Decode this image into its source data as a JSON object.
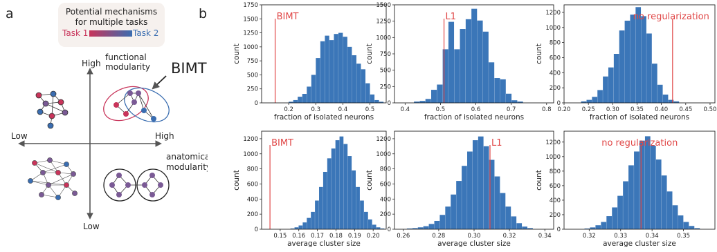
{
  "panel_a": {
    "letter": "a",
    "legend_line1": "Potential mechanisms",
    "legend_line2": "for multiple tasks",
    "task1": "Task 1",
    "task2": "Task 2",
    "axis_high_y": "High",
    "axis_low_y": "Low",
    "axis_low_x": "Low",
    "axis_high_x": "High",
    "functional_1": "functional",
    "functional_2": "modularity",
    "anatomical_1": "anatomical",
    "anatomical_2": "modularity",
    "bimt": "BIMT",
    "colors": {
      "task1": "#c8345a",
      "task2": "#3a6db0",
      "mixed": "#7a5a95",
      "legend_bg": "#f6f1ee"
    }
  },
  "panel_b": {
    "letter": "b"
  },
  "chart_data": [
    {
      "type": "bar",
      "xlabel": "fraction of isolated neurons",
      "ylabel": "count",
      "xlim": [
        0.1,
        0.56
      ],
      "ylim": [
        0,
        1750
      ],
      "xticks": [
        0.2,
        0.3,
        0.4,
        0.5
      ],
      "xtick_labels": [
        "0.2",
        "0.3",
        "0.4",
        "0.5"
      ],
      "yticks": [
        0,
        250,
        500,
        750,
        1000,
        1250,
        1500,
        1750
      ],
      "ytick_labels": [
        "0",
        "250",
        "500",
        "750",
        "1000",
        "1250",
        "1500",
        "1750"
      ],
      "bin_start": 0.2,
      "bin_width": 0.0167,
      "values": [
        20,
        50,
        110,
        160,
        290,
        500,
        800,
        1100,
        1200,
        1120,
        1230,
        1250,
        1180,
        1000,
        850,
        700,
        600,
        350,
        150,
        50,
        20
      ],
      "vline": 0.15,
      "annotation": "BIMT",
      "color": "#3b76b8"
    },
    {
      "type": "bar",
      "xlabel": "fraction of isolated neurons",
      "ylabel": "count",
      "xlim": [
        0.37,
        0.82
      ],
      "ylim": [
        0,
        1500
      ],
      "xticks": [
        0.4,
        0.5,
        0.6,
        0.7,
        0.8
      ],
      "xtick_labels": [
        "0.4",
        "0.5",
        "0.6",
        "0.7",
        "0.8"
      ],
      "yticks": [
        0,
        250,
        500,
        750,
        1000,
        1250,
        1500
      ],
      "ytick_labels": [
        "0",
        "250",
        "500",
        "750",
        "1000",
        "1250",
        "1500"
      ],
      "bin_start": 0.425,
      "bin_width": 0.01625,
      "values": [
        20,
        30,
        60,
        200,
        280,
        820,
        1240,
        820,
        1130,
        1280,
        1440,
        1260,
        1090,
        620,
        380,
        360,
        140,
        40,
        20
      ],
      "vline": 0.51,
      "annotation": "L1",
      "color": "#3b76b8"
    },
    {
      "type": "bar",
      "xlabel": "fraction of isolated neurons",
      "ylabel": "count",
      "xlim": [
        0.2,
        0.51
      ],
      "ylim": [
        0,
        1300
      ],
      "xticks": [
        0.2,
        0.25,
        0.3,
        0.35,
        0.4,
        0.45,
        0.5
      ],
      "xtick_labels": [
        "0.20",
        "0.25",
        "0.30",
        "0.35",
        "0.40",
        "0.45",
        "0.50"
      ],
      "yticks": [
        0,
        200,
        400,
        600,
        800,
        1000,
        1200
      ],
      "ytick_labels": [
        "0",
        "200",
        "400",
        "600",
        "800",
        "1000",
        "1200"
      ],
      "bin_start": 0.235,
      "bin_width": 0.0112,
      "values": [
        20,
        40,
        80,
        170,
        350,
        470,
        650,
        960,
        1090,
        1170,
        1270,
        1150,
        920,
        520,
        240,
        110,
        40,
        20
      ],
      "vline": 0.423,
      "annotation": "no regularization",
      "color": "#3b76b8"
    },
    {
      "type": "bar",
      "xlabel": "average cluster size",
      "ylabel": "count",
      "xlim": [
        0.14,
        0.207
      ],
      "ylim": [
        0,
        1300
      ],
      "xticks": [
        0.15,
        0.16,
        0.17,
        0.18,
        0.19,
        0.2
      ],
      "xtick_labels": [
        "0.15",
        "0.16",
        "0.17",
        "0.18",
        "0.19",
        "0.20"
      ],
      "yticks": [
        0,
        200,
        400,
        600,
        800,
        1000,
        1200
      ],
      "ytick_labels": [
        "0",
        "200",
        "400",
        "600",
        "800",
        "1000",
        "1200"
      ],
      "bin_start": 0.1555,
      "bin_width": 0.0022,
      "values": [
        10,
        25,
        50,
        90,
        150,
        230,
        380,
        560,
        760,
        940,
        1070,
        1180,
        1230,
        1130,
        970,
        780,
        560,
        380,
        230,
        130,
        60,
        25,
        10
      ],
      "vline": 0.1445,
      "annotation": "BIMT",
      "color": "#3b76b8"
    },
    {
      "type": "bar",
      "xlabel": "average cluster size",
      "ylabel": "count",
      "xlim": [
        0.255,
        0.345
      ],
      "ylim": [
        0,
        1300
      ],
      "xticks": [
        0.26,
        0.28,
        0.3,
        0.32,
        0.34
      ],
      "xtick_labels": [
        "0.26",
        "0.28",
        "0.30",
        "0.32",
        "0.34"
      ],
      "yticks": [
        0,
        200,
        400,
        600,
        800,
        1000,
        1200
      ],
      "ytick_labels": [
        "0",
        "200",
        "400",
        "600",
        "800",
        "1000",
        "1200"
      ],
      "bin_start": 0.262,
      "bin_width": 0.0031,
      "values": [
        10,
        15,
        25,
        40,
        70,
        110,
        190,
        300,
        460,
        640,
        840,
        1030,
        1180,
        1230,
        1100,
        920,
        700,
        480,
        300,
        170,
        80,
        35,
        15
      ],
      "vline": 0.309,
      "annotation": "L1",
      "color": "#3b76b8"
    },
    {
      "type": "bar",
      "xlabel": "average cluster size",
      "ylabel": "count",
      "xlim": [
        0.312,
        0.36
      ],
      "ylim": [
        0,
        1350
      ],
      "xticks": [
        0.32,
        0.33,
        0.34,
        0.35
      ],
      "xtick_labels": [
        "0.32",
        "0.33",
        "0.34",
        "0.35"
      ],
      "yticks": [
        0,
        200,
        400,
        600,
        800,
        1000,
        1200
      ],
      "ytick_labels": [
        "0",
        "200",
        "400",
        "600",
        "800",
        "1000",
        "1200"
      ],
      "bin_start": 0.3185,
      "bin_width": 0.00175,
      "values": [
        10,
        25,
        55,
        100,
        180,
        300,
        460,
        660,
        880,
        1070,
        1220,
        1280,
        1150,
        960,
        740,
        520,
        330,
        190,
        100,
        45,
        15
      ],
      "vline": 0.3365,
      "annotation": "no regularization",
      "color": "#3b76b8"
    }
  ]
}
